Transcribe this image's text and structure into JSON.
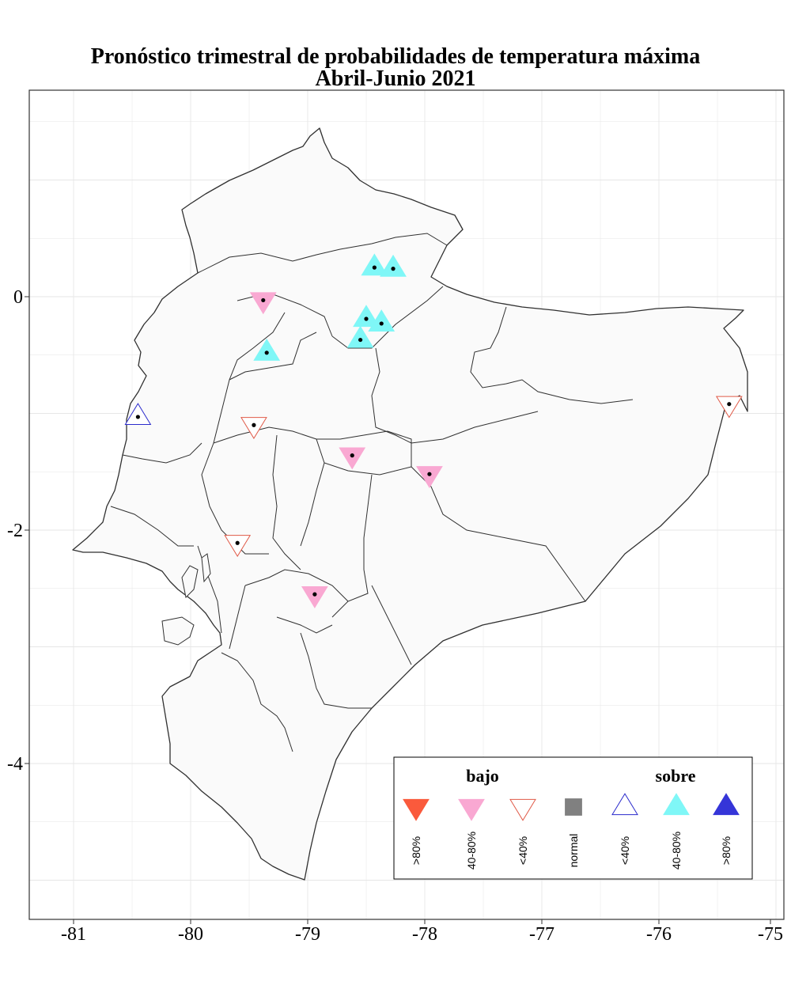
{
  "title": {
    "line1": "Pronóstico trimestral de probabilidades de temperatura máxima",
    "line2": "Abril-Junio 2021"
  },
  "axes": {
    "x_ticks": [
      "-81",
      "-80",
      "-79",
      "-78",
      "-77",
      "-76",
      "-75"
    ],
    "y_ticks": [
      "0",
      "-2",
      "-4"
    ],
    "x_range": [
      -81.4,
      -74.9
    ],
    "y_range": [
      -5.3,
      1.8
    ],
    "grid": true
  },
  "colors": {
    "map_fill": "#fafafa",
    "border": "#303030",
    "bajo_high": "#fa5a3c",
    "bajo_mid": "#f9a8d2",
    "bajo_low_outline": "#e05a48",
    "normal": "#808080",
    "sobre_low_outline": "#2b2bcc",
    "sobre_mid": "#7ff7f7",
    "sobre_high": "#3535d8"
  },
  "legend": {
    "bajo_label": "bajo",
    "sobre_label": "sobre",
    "items": [
      {
        "label": ">80%",
        "symbol": "down-filled",
        "color": "#fa5a3c"
      },
      {
        "label": "40-80%",
        "symbol": "down-filled",
        "color": "#f9a8d2"
      },
      {
        "label": "<40%",
        "symbol": "down-open",
        "color": "#e05a48"
      },
      {
        "label": "normal",
        "symbol": "square",
        "color": "#808080"
      },
      {
        "label": "<40%",
        "symbol": "up-open",
        "color": "#2b2bcc"
      },
      {
        "label": "40-80%",
        "symbol": "up-filled",
        "color": "#7ff7f7"
      },
      {
        "label": ">80%",
        "symbol": "up-filled",
        "color": "#3535d8"
      }
    ]
  },
  "stations": [
    {
      "lon": -78.43,
      "lat": 0.25,
      "category": "sobre 40-80%"
    },
    {
      "lon": -78.27,
      "lat": 0.24,
      "category": "sobre 40-80%"
    },
    {
      "lon": -79.38,
      "lat": -0.03,
      "category": "bajo 40-80%"
    },
    {
      "lon": -78.5,
      "lat": -0.19,
      "category": "sobre 40-80%"
    },
    {
      "lon": -78.37,
      "lat": -0.23,
      "category": "sobre 40-80%"
    },
    {
      "lon": -78.55,
      "lat": -0.37,
      "category": "sobre 40-80%"
    },
    {
      "lon": -79.35,
      "lat": -0.48,
      "category": "sobre 40-80%"
    },
    {
      "lon": -80.45,
      "lat": -1.03,
      "category": "sobre <40%"
    },
    {
      "lon": -75.4,
      "lat": -0.92,
      "category": "bajo <40%"
    },
    {
      "lon": -79.46,
      "lat": -1.1,
      "category": "bajo <40%"
    },
    {
      "lon": -78.62,
      "lat": -1.36,
      "category": "bajo 40-80%"
    },
    {
      "lon": -77.96,
      "lat": -1.52,
      "category": "bajo 40-80%"
    },
    {
      "lon": -79.6,
      "lat": -2.11,
      "category": "bajo <40%"
    },
    {
      "lon": -78.94,
      "lat": -2.55,
      "category": "bajo 40-80%"
    }
  ]
}
